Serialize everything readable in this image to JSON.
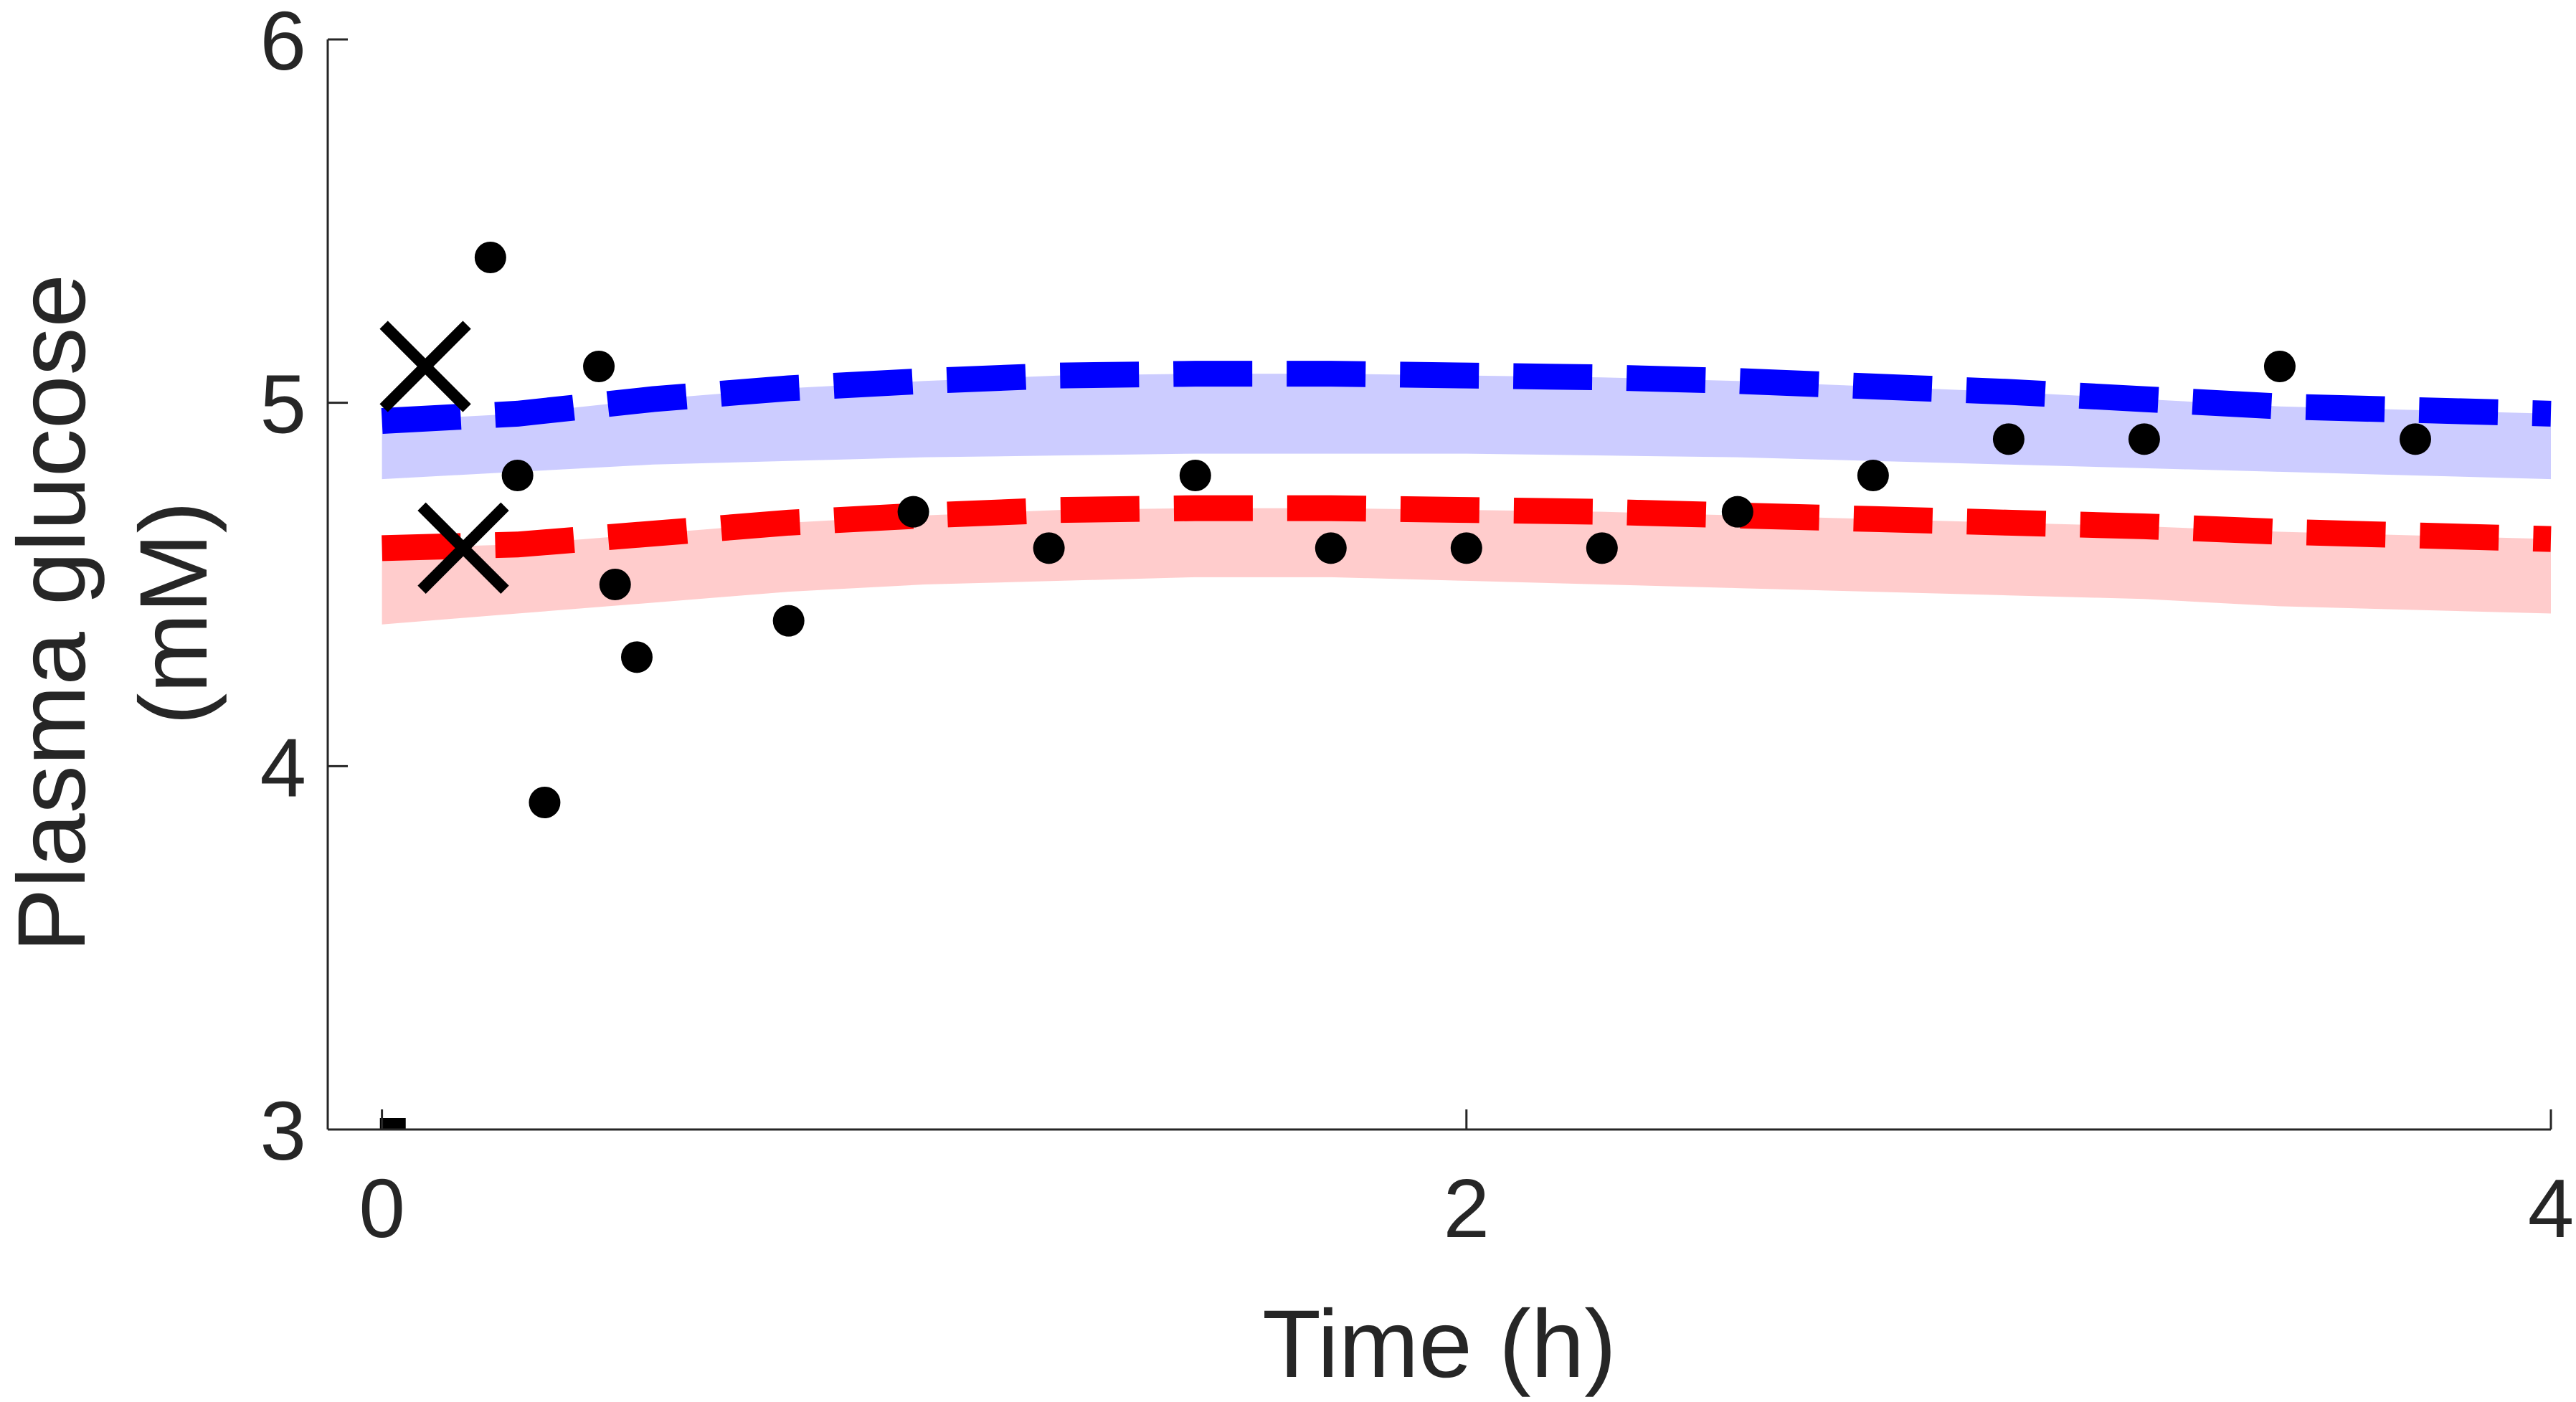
{
  "chart_data": {
    "type": "line",
    "xlabel": "Time (h)",
    "ylabel_lines": [
      "Plasma glucose",
      "(mM)"
    ],
    "xlim": [
      -0.1,
      4
    ],
    "ylim": [
      3,
      6
    ],
    "xticks": [
      0,
      2,
      4
    ],
    "yticks": [
      3,
      4,
      5,
      6
    ],
    "grid": false,
    "colors": {
      "blue_line": "#0000ff",
      "blue_band": "#ccccff",
      "red_line": "#ff0000",
      "red_band": "#ffcccc",
      "markers": "#000000",
      "axis": "#262626"
    },
    "series": [
      {
        "style": "dashed-line",
        "color": "blue",
        "x": [
          0,
          0.25,
          0.5,
          0.75,
          1,
          1.25,
          1.5,
          1.75,
          2,
          2.25,
          2.5,
          2.75,
          3,
          3.25,
          3.5,
          3.75,
          4
        ],
        "y": [
          4.95,
          4.97,
          5.01,
          5.04,
          5.06,
          5.075,
          5.08,
          5.08,
          5.075,
          5.07,
          5.06,
          5.045,
          5.03,
          5.01,
          4.99,
          4.98,
          4.97
        ]
      },
      {
        "style": "band",
        "color": "blue",
        "x": [
          0,
          0.25,
          0.5,
          0.75,
          1,
          1.25,
          1.5,
          1.75,
          2,
          2.25,
          2.5,
          2.75,
          3,
          3.25,
          3.5,
          3.75,
          4
        ],
        "lower": [
          4.79,
          4.81,
          4.83,
          4.84,
          4.85,
          4.855,
          4.86,
          4.86,
          4.86,
          4.855,
          4.85,
          4.84,
          4.83,
          4.82,
          4.81,
          4.8,
          4.79
        ],
        "upper": [
          4.95,
          4.97,
          5.01,
          5.04,
          5.06,
          5.075,
          5.08,
          5.08,
          5.075,
          5.07,
          5.06,
          5.045,
          5.03,
          5.01,
          4.99,
          4.98,
          4.97
        ]
      },
      {
        "style": "dashed-line",
        "color": "red",
        "x": [
          0,
          0.25,
          0.5,
          0.75,
          1,
          1.25,
          1.5,
          1.75,
          2,
          2.25,
          2.5,
          2.75,
          3,
          3.25,
          3.5,
          3.75,
          4
        ],
        "y": [
          4.6,
          4.61,
          4.64,
          4.67,
          4.69,
          4.705,
          4.71,
          4.71,
          4.705,
          4.7,
          4.69,
          4.68,
          4.67,
          4.66,
          4.645,
          4.635,
          4.625
        ]
      },
      {
        "style": "band",
        "color": "red",
        "x": [
          0,
          0.25,
          0.5,
          0.75,
          1,
          1.25,
          1.5,
          1.75,
          2,
          2.25,
          2.5,
          2.75,
          3,
          3.25,
          3.5,
          3.75,
          4
        ],
        "lower": [
          4.39,
          4.42,
          4.45,
          4.48,
          4.5,
          4.51,
          4.52,
          4.52,
          4.51,
          4.5,
          4.49,
          4.48,
          4.47,
          4.46,
          4.44,
          4.43,
          4.42
        ],
        "upper": [
          4.6,
          4.61,
          4.64,
          4.67,
          4.69,
          4.705,
          4.71,
          4.71,
          4.705,
          4.7,
          4.69,
          4.68,
          4.67,
          4.66,
          4.645,
          4.635,
          4.625
        ]
      },
      {
        "style": "dots",
        "color": "black",
        "x": [
          0.2,
          0.25,
          0.3,
          0.4,
          0.43,
          0.47,
          0.75,
          0.98,
          1.23,
          1.5,
          1.75,
          2.0,
          2.25,
          2.5,
          2.75,
          3.0,
          3.25,
          3.5,
          3.75
        ],
        "y": [
          5.4,
          4.8,
          3.9,
          5.1,
          4.5,
          4.3,
          4.4,
          4.7,
          4.6,
          4.8,
          4.6,
          4.6,
          4.6,
          4.7,
          4.8,
          4.9,
          4.9,
          5.1,
          4.9
        ]
      },
      {
        "style": "crosses",
        "color": "black",
        "x": [
          0.08,
          0.15
        ],
        "y": [
          5.1,
          4.6
        ]
      },
      {
        "style": "square-marker",
        "color": "black",
        "x": [
          0.02
        ],
        "y": [
          3.0
        ]
      }
    ]
  }
}
